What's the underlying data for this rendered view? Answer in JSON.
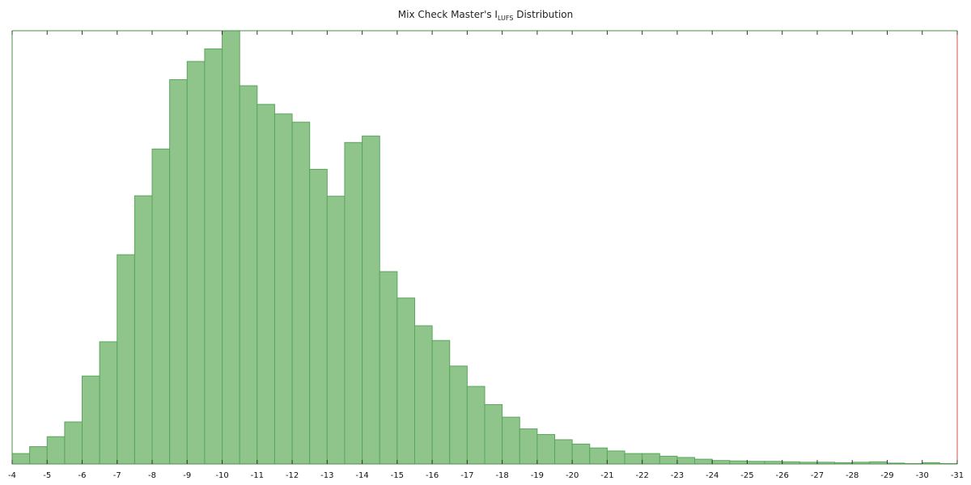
{
  "chart_data": {
    "type": "bar",
    "title": {
      "prefix": "Mix Check Master's I",
      "subscript": "LUFS",
      "suffix": " Distribution"
    },
    "xlabel": "",
    "ylabel": "",
    "x_range": [
      -4,
      -31
    ],
    "x_ticks": [
      "-4",
      "-5",
      "-6",
      "-7",
      "-8",
      "-9",
      "-10",
      "-11",
      "-12",
      "-13",
      "-14",
      "-15",
      "-16",
      "-17",
      "-18",
      "-19",
      "-20",
      "-21",
      "-22",
      "-23",
      "-24",
      "-25",
      "-26",
      "-27",
      "-28",
      "-29",
      "-30",
      "-31"
    ],
    "bin_width": 0.5,
    "bins_start": [
      -4.0,
      -4.5,
      -5.0,
      -5.5,
      -6.0,
      -6.5,
      -7.0,
      -7.5,
      -8.0,
      -8.5,
      -9.0,
      -9.5,
      -10.0,
      -10.5,
      -11.0,
      -11.5,
      -12.0,
      -12.5,
      -13.0,
      -13.5,
      -14.0,
      -14.5,
      -15.0,
      -15.5,
      -16.0,
      -16.5,
      -17.0,
      -17.5,
      -18.0,
      -18.5,
      -19.0,
      -19.5,
      -20.0,
      -20.5,
      -21.0,
      -21.5,
      -22.0,
      -22.5,
      -23.0,
      -23.5,
      -24.0,
      -24.5,
      -25.0,
      -25.5,
      -26.0,
      -26.5,
      -27.0,
      -27.5,
      -28.0,
      -28.5,
      -29.0,
      -29.5,
      -30.0,
      -30.5
    ],
    "values": [
      0.024,
      0.04,
      0.063,
      0.097,
      0.203,
      0.282,
      0.483,
      0.619,
      0.727,
      0.887,
      0.929,
      0.958,
      1.0,
      0.873,
      0.83,
      0.808,
      0.789,
      0.68,
      0.618,
      0.742,
      0.757,
      0.444,
      0.383,
      0.319,
      0.285,
      0.226,
      0.179,
      0.137,
      0.108,
      0.081,
      0.068,
      0.056,
      0.046,
      0.037,
      0.03,
      0.024,
      0.024,
      0.018,
      0.015,
      0.011,
      0.008,
      0.007,
      0.006,
      0.006,
      0.005,
      0.004,
      0.004,
      0.003,
      0.004,
      0.005,
      0.002,
      0.001,
      0.003,
      0.001
    ],
    "grid": false,
    "legend": "none",
    "colors": {
      "bar_fill": "#8fc58b",
      "bar_edge": "#5aa55e",
      "axis": "#4c8f4c",
      "right_axis": "#d6504a"
    }
  }
}
